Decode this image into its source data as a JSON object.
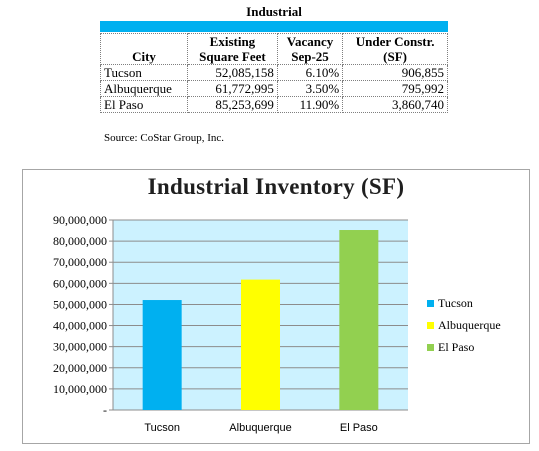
{
  "table": {
    "title": "Industrial",
    "headers": {
      "city": "City",
      "existing_1": "Existing",
      "existing_2": "Square Feet",
      "vacancy_1": "Vacancy",
      "vacancy_2": "Sep-25",
      "constr_1": "Under Constr.",
      "constr_2": "(SF)"
    },
    "rows": [
      {
        "city": "Tucson",
        "sqft": "52,085,158",
        "vacancy": "6.10%",
        "constr": "906,855"
      },
      {
        "city": "Albuquerque",
        "sqft": "61,772,995",
        "vacancy": "3.50%",
        "constr": "795,992"
      },
      {
        "city": "El Paso",
        "sqft": "85,253,699",
        "vacancy": "11.90%",
        "constr": "3,860,740"
      }
    ],
    "source": "Source: CoStar Group, Inc.",
    "accent_color": "#00b0f0"
  },
  "chart_data": {
    "type": "bar",
    "title": "Industrial Inventory (SF)",
    "categories": [
      "Tucson",
      "Albuquerque",
      "El Paso"
    ],
    "values": [
      52085158,
      61772995,
      85253699
    ],
    "colors": [
      "#00b0f0",
      "#ffff00",
      "#92d050"
    ],
    "ylim": [
      0,
      90000000
    ],
    "yticks": [
      "-",
      "10,000,000",
      "20,000,000",
      "30,000,000",
      "40,000,000",
      "50,000,000",
      "60,000,000",
      "70,000,000",
      "80,000,000",
      "90,000,000"
    ],
    "grid": true,
    "plot_background": "#ccf2ff",
    "legend": "right",
    "legend_entries": [
      "Tucson",
      "Albuquerque",
      "El Paso"
    ]
  }
}
